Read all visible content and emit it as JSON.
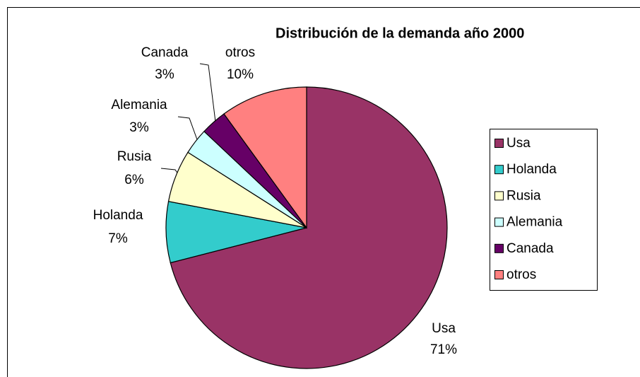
{
  "chart_data": {
    "type": "pie",
    "title": "Distribución de la demanda año 2000",
    "categories": [
      "Usa",
      "Holanda",
      "Rusia",
      "Alemania",
      "Canada",
      "otros"
    ],
    "values": [
      71,
      7,
      6,
      3,
      3,
      10
    ],
    "value_labels": [
      "71%",
      "7%",
      "6%",
      "3%",
      "3%",
      "10%"
    ],
    "colors": [
      "#993366",
      "#33CCCC",
      "#FFFFCC",
      "#CCFFFF",
      "#660066",
      "#FF8080"
    ],
    "legend": "right"
  }
}
